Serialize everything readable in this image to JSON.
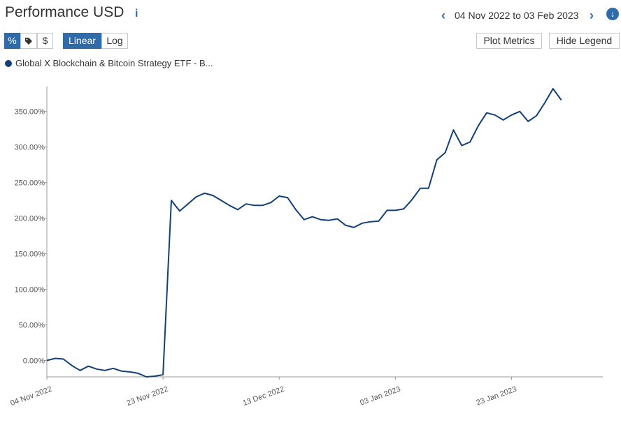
{
  "header": {
    "title": "Performance USD",
    "info_icon": "info-icon",
    "date_range": "04 Nov 2022 to 03 Feb 2023"
  },
  "toolbar": {
    "type_buttons": [
      "%",
      "tag-icon",
      "$"
    ],
    "scale_linear": "Linear",
    "scale_log": "Log",
    "plot_metrics": "Plot Metrics",
    "hide_legend": "Hide Legend"
  },
  "colors": {
    "accent": "#2f6aa9",
    "series": "#143f78"
  },
  "chart_data": {
    "type": "line",
    "title": "",
    "xlabel": "",
    "ylabel": "",
    "scale": "linear",
    "legend_position": "top-left",
    "grid": false,
    "ylim": [
      -23,
      385
    ],
    "y_ticks": [
      "0.00%",
      "50.00%",
      "100.00%",
      "150.00%",
      "200.00%",
      "250.00%",
      "300.00%",
      "350.00%"
    ],
    "y_tick_values": [
      0,
      50,
      100,
      150,
      200,
      250,
      300,
      350
    ],
    "x_ticks": [
      "04 Nov 2022",
      "23 Nov 2022",
      "13 Dec 2022",
      "03 Jan 2023",
      "23 Jan 2023"
    ],
    "x_tick_index": [
      0,
      14,
      28,
      42,
      56
    ],
    "x_index_range": [
      0,
      67
    ],
    "series": [
      {
        "name": "Global X Blockchain & Bitcoin Strategy ETF - B...",
        "values": [
          0,
          3,
          2,
          -7,
          -14,
          -8,
          -12,
          -14,
          -11,
          -15,
          -16,
          -18,
          -23,
          -22,
          -20,
          225,
          210,
          220,
          230,
          235,
          232,
          225,
          218,
          212,
          220,
          218,
          218,
          222,
          231,
          229,
          212,
          198,
          202,
          198,
          197,
          199,
          190,
          187,
          193,
          195,
          196,
          211,
          211,
          213,
          226,
          242,
          242,
          282,
          292,
          324,
          302,
          307,
          330,
          348,
          345,
          338,
          345,
          350,
          336,
          344,
          362,
          382,
          366
        ]
      }
    ]
  }
}
